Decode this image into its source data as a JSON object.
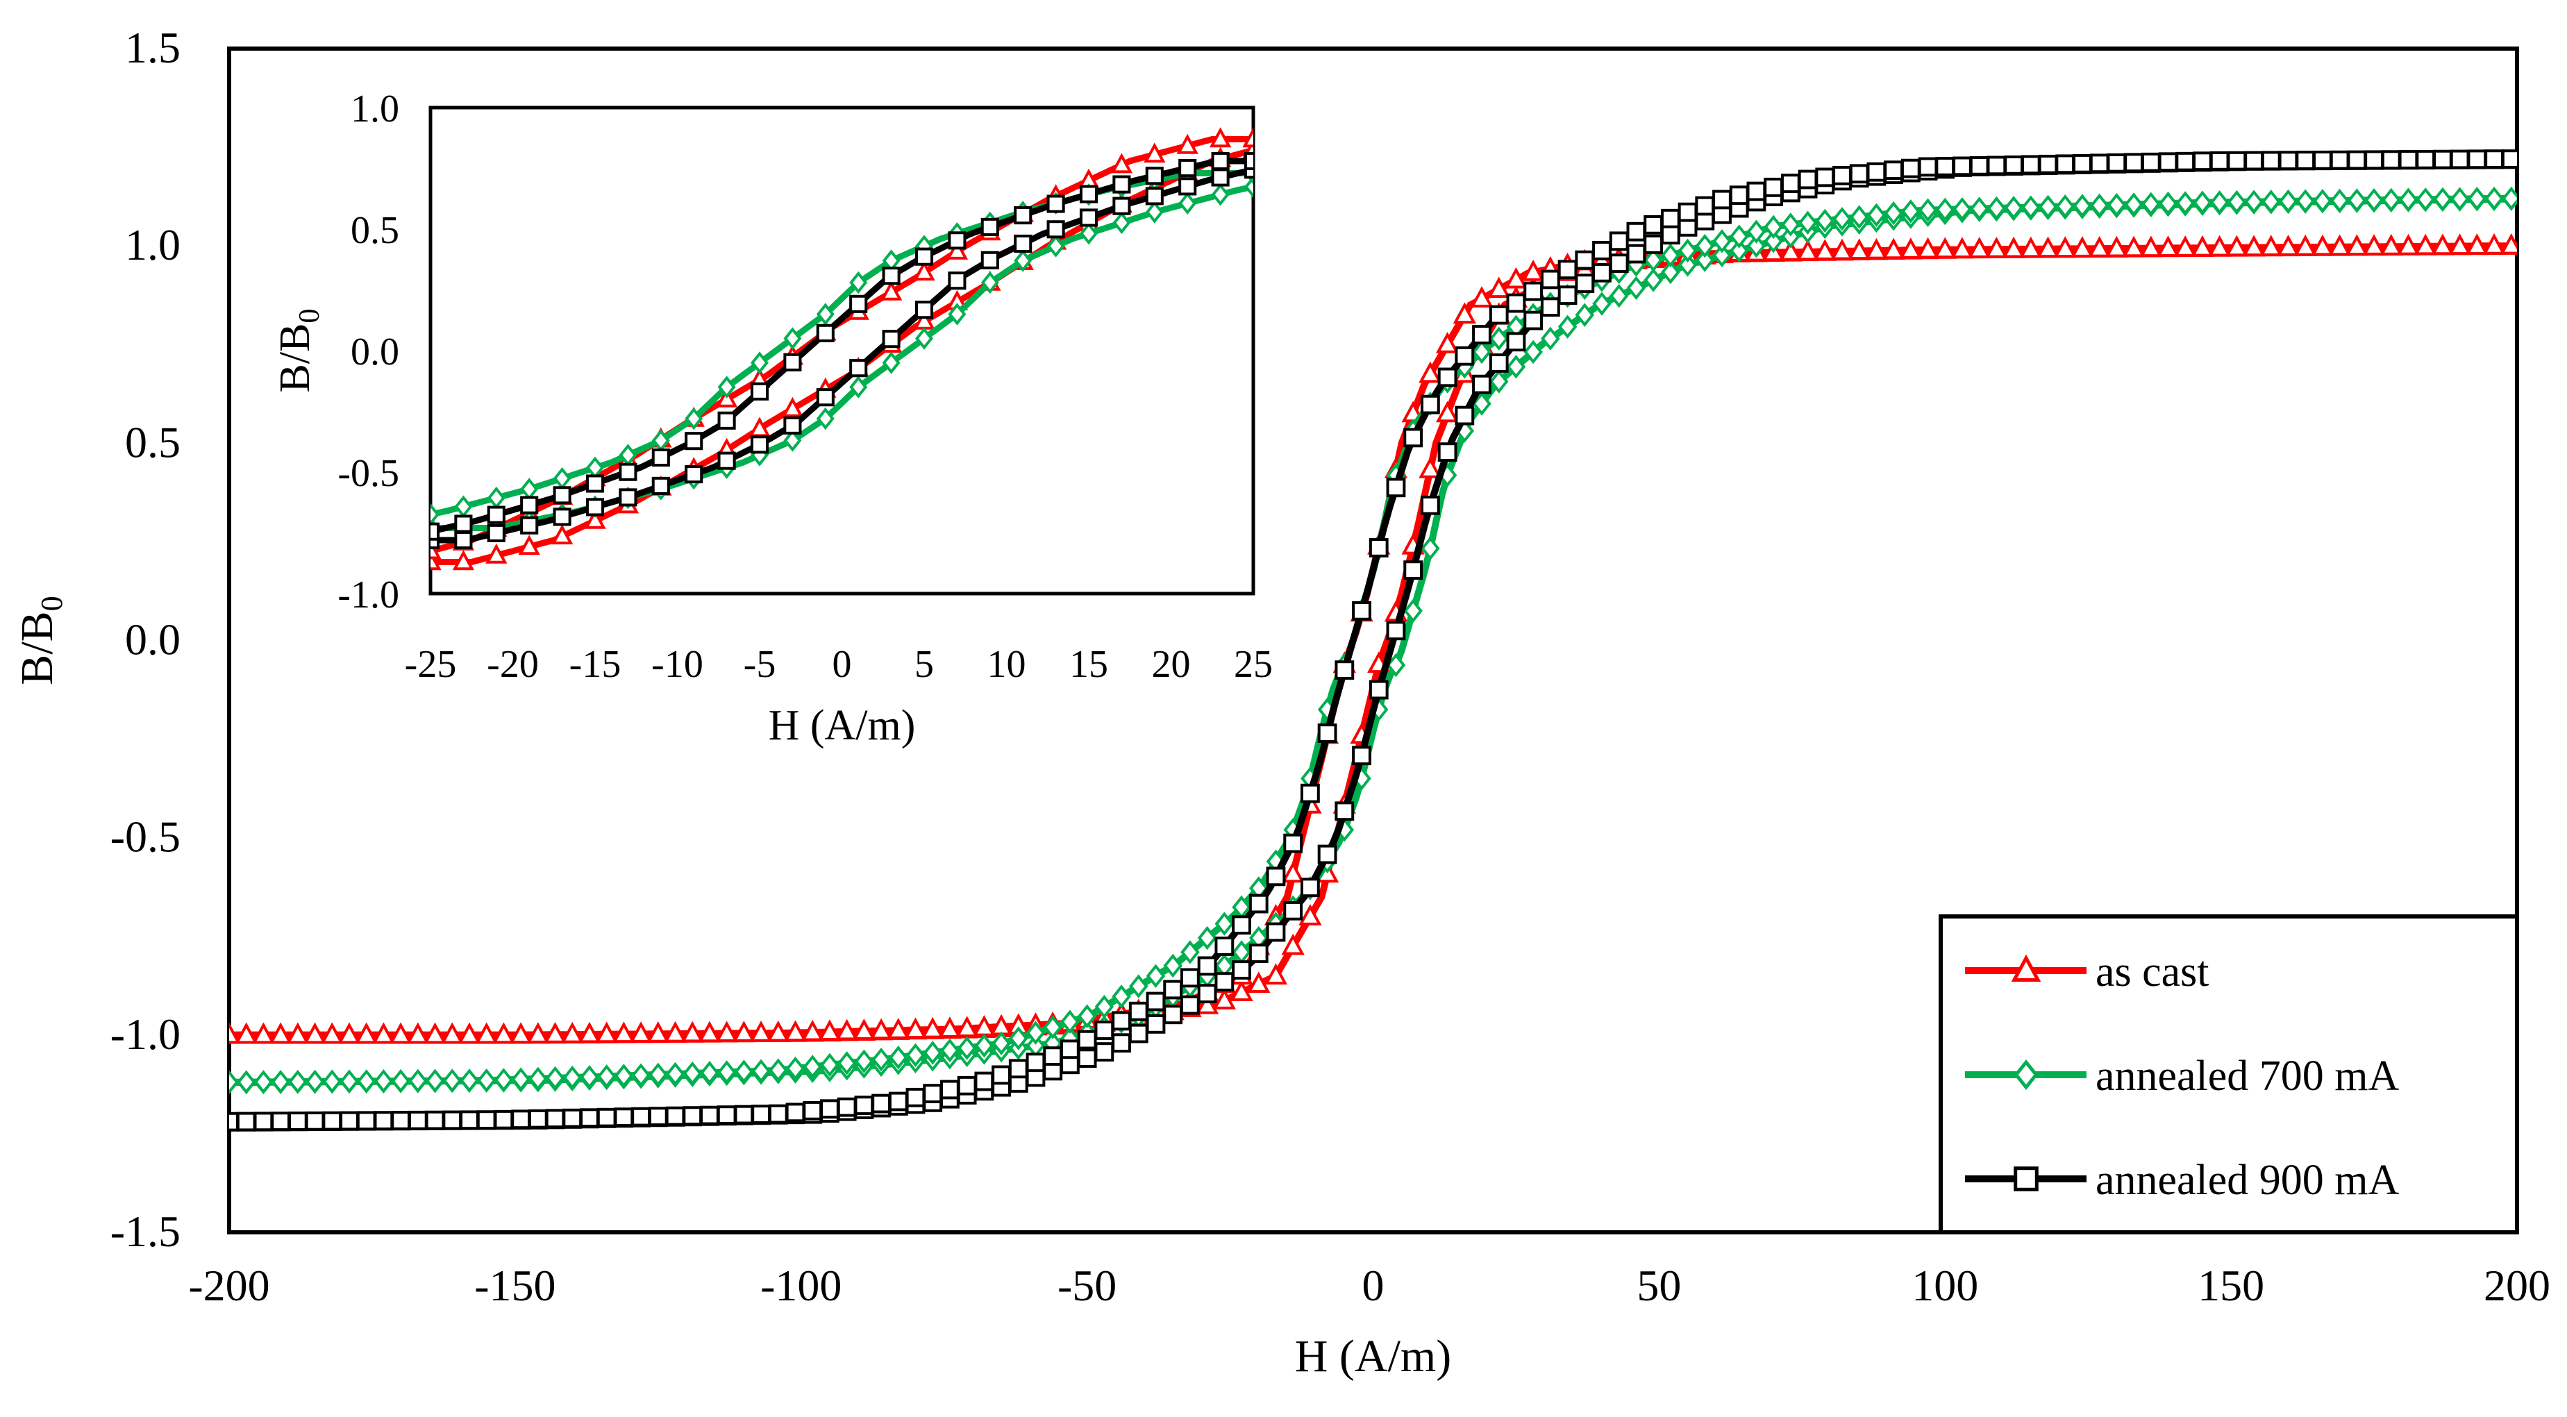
{
  "chart_data": [
    {
      "id": "main",
      "type": "line",
      "title": "",
      "xlabel": "H (A/m)",
      "ylabel_main": "B/B",
      "ylabel_sub": "0",
      "xlim": [
        -200,
        200
      ],
      "ylim": [
        -1.5,
        1.5
      ],
      "xticks": [
        -200,
        -150,
        -100,
        -50,
        0,
        50,
        100,
        150,
        200
      ],
      "xtick_labels": [
        "-200",
        "-150",
        "-100",
        "-50",
        "0",
        "50",
        "100",
        "150",
        "200"
      ],
      "yticks": [
        -1.5,
        -1.0,
        -0.5,
        0.0,
        0.5,
        1.0,
        1.5
      ],
      "ytick_labels": [
        "-1.5",
        "-1.0",
        "-0.5",
        "0.0",
        "0.5",
        "1.0",
        "1.5"
      ],
      "grid": false,
      "legend_position": "bottom-right",
      "series": [
        {
          "name": "as cast",
          "color": "#ff0000",
          "marker": "triangle",
          "hysteresis_points": [
            [
              -200,
              -1.0
            ],
            [
              -150,
              -1.0
            ],
            [
              -100,
              -0.995
            ],
            [
              -70,
              -0.985
            ],
            [
              -50,
              -0.97
            ],
            [
              -30,
              -0.92
            ],
            [
              -20,
              -0.85
            ],
            [
              -12,
              -0.65
            ],
            [
              -6,
              -0.3
            ],
            [
              -2,
              -0.06
            ],
            [
              0,
              0.02
            ],
            [
              2,
              0.12
            ],
            [
              5,
              0.3
            ],
            [
              8,
              0.5
            ],
            [
              12,
              0.65
            ],
            [
              16,
              0.75
            ],
            [
              20,
              0.85
            ],
            [
              30,
              0.93
            ],
            [
              40,
              0.96
            ],
            [
              60,
              0.98
            ],
            [
              100,
              0.99
            ],
            [
              150,
              0.995
            ],
            [
              200,
              1.0
            ]
          ],
          "shift": 3.0
        },
        {
          "name": "annealed 700 mA",
          "color": "#00b050",
          "marker": "diamond",
          "hysteresis_points": [
            [
              -200,
              -1.12
            ],
            [
              -150,
              -1.115
            ],
            [
              -100,
              -1.09
            ],
            [
              -80,
              -1.06
            ],
            [
              -60,
              -1.02
            ],
            [
              -45,
              -0.95
            ],
            [
              -30,
              -0.82
            ],
            [
              -20,
              -0.7
            ],
            [
              -15,
              -0.62
            ],
            [
              -10,
              -0.5
            ],
            [
              -7,
              -0.38
            ],
            [
              -4,
              -0.2
            ],
            [
              -2,
              -0.1
            ],
            [
              0,
              -0.05
            ],
            [
              2,
              0.05
            ],
            [
              5,
              0.2
            ],
            [
              8,
              0.4
            ],
            [
              12,
              0.55
            ],
            [
              17,
              0.65
            ],
            [
              25,
              0.75
            ],
            [
              35,
              0.85
            ],
            [
              50,
              0.95
            ],
            [
              75,
              1.05
            ],
            [
              100,
              1.09
            ],
            [
              150,
              1.11
            ],
            [
              200,
              1.12
            ]
          ],
          "shift": 4.5
        },
        {
          "name": "annealed 900 mA",
          "color": "#000000",
          "marker": "square",
          "hysteresis_points": [
            [
              -200,
              -1.22
            ],
            [
              -150,
              -1.215
            ],
            [
              -100,
              -1.2
            ],
            [
              -80,
              -1.17
            ],
            [
              -65,
              -1.12
            ],
            [
              -50,
              -1.04
            ],
            [
              -35,
              -0.92
            ],
            [
              -25,
              -0.82
            ],
            [
              -15,
              -0.64
            ],
            [
              -10,
              -0.5
            ],
            [
              -6,
              -0.32
            ],
            [
              -3,
              -0.15
            ],
            [
              0,
              0.0
            ],
            [
              3,
              0.15
            ],
            [
              6,
              0.32
            ],
            [
              10,
              0.5
            ],
            [
              15,
              0.64
            ],
            [
              25,
              0.82
            ],
            [
              35,
              0.92
            ],
            [
              50,
              1.04
            ],
            [
              65,
              1.12
            ],
            [
              80,
              1.17
            ],
            [
              100,
              1.2
            ],
            [
              150,
              1.215
            ],
            [
              200,
              1.22
            ]
          ],
          "shift": 3.5
        }
      ]
    },
    {
      "id": "inset",
      "type": "line",
      "title": "",
      "xlabel": "H (A/m)",
      "ylabel_main": "B/B",
      "ylabel_sub": "0",
      "xlim": [
        -25,
        25
      ],
      "ylim": [
        -1.0,
        1.0
      ],
      "xticks": [
        -25,
        -20,
        -15,
        -10,
        -5,
        0,
        5,
        10,
        15,
        20,
        25
      ],
      "xtick_labels": [
        "-25",
        "-20",
        "-15",
        "-10",
        "-5",
        "0",
        "5",
        "10",
        "15",
        "20",
        "25"
      ],
      "yticks": [
        -1.0,
        -0.5,
        0.0,
        0.5,
        1.0
      ],
      "ytick_labels": [
        "-1.0",
        "-0.5",
        "0.0",
        "0.5",
        "1.0"
      ],
      "grid": false,
      "series": [
        {
          "name": "as cast",
          "color": "#ff0000",
          "marker": "triangle",
          "hysteresis_points": [
            [
              -25,
              -0.87
            ],
            [
              -20,
              -0.78
            ],
            [
              -15,
              -0.62
            ],
            [
              -10,
              -0.43
            ],
            [
              -7,
              -0.3
            ],
            [
              -5,
              -0.22
            ],
            [
              -2,
              -0.1
            ],
            [
              0,
              0.0
            ],
            [
              2,
              0.1
            ],
            [
              5,
              0.22
            ],
            [
              7,
              0.3
            ],
            [
              10,
              0.43
            ],
            [
              15,
              0.62
            ],
            [
              20,
              0.78
            ],
            [
              25,
              0.87
            ]
          ],
          "shift": 2.5
        },
        {
          "name": "annealed 700 mA",
          "color": "#00b050",
          "marker": "diamond",
          "hysteresis_points": [
            [
              -25,
              -0.73
            ],
            [
              -20,
              -0.66
            ],
            [
              -15,
              -0.57
            ],
            [
              -10,
              -0.46
            ],
            [
              -7,
              -0.37
            ],
            [
              -5,
              -0.28
            ],
            [
              -3,
              -0.15
            ],
            [
              -1,
              -0.05
            ],
            [
              1,
              0.05
            ],
            [
              3,
              0.15
            ],
            [
              5,
              0.28
            ],
            [
              7,
              0.37
            ],
            [
              10,
              0.46
            ],
            [
              15,
              0.57
            ],
            [
              20,
              0.66
            ],
            [
              25,
              0.73
            ]
          ],
          "shift": 4.0
        },
        {
          "name": "annealed 900 mA",
          "color": "#000000",
          "marker": "square",
          "hysteresis_points": [
            [
              -25,
              -0.78
            ],
            [
              -20,
              -0.7
            ],
            [
              -15,
              -0.6
            ],
            [
              -10,
              -0.48
            ],
            [
              -7,
              -0.38
            ],
            [
              -5,
              -0.3
            ],
            [
              -3,
              -0.18
            ],
            [
              -1,
              -0.06
            ],
            [
              1,
              0.06
            ],
            [
              3,
              0.18
            ],
            [
              5,
              0.3
            ],
            [
              7,
              0.38
            ],
            [
              10,
              0.48
            ],
            [
              15,
              0.6
            ],
            [
              20,
              0.7
            ],
            [
              25,
              0.78
            ]
          ],
          "shift": 2.2
        }
      ]
    }
  ]
}
